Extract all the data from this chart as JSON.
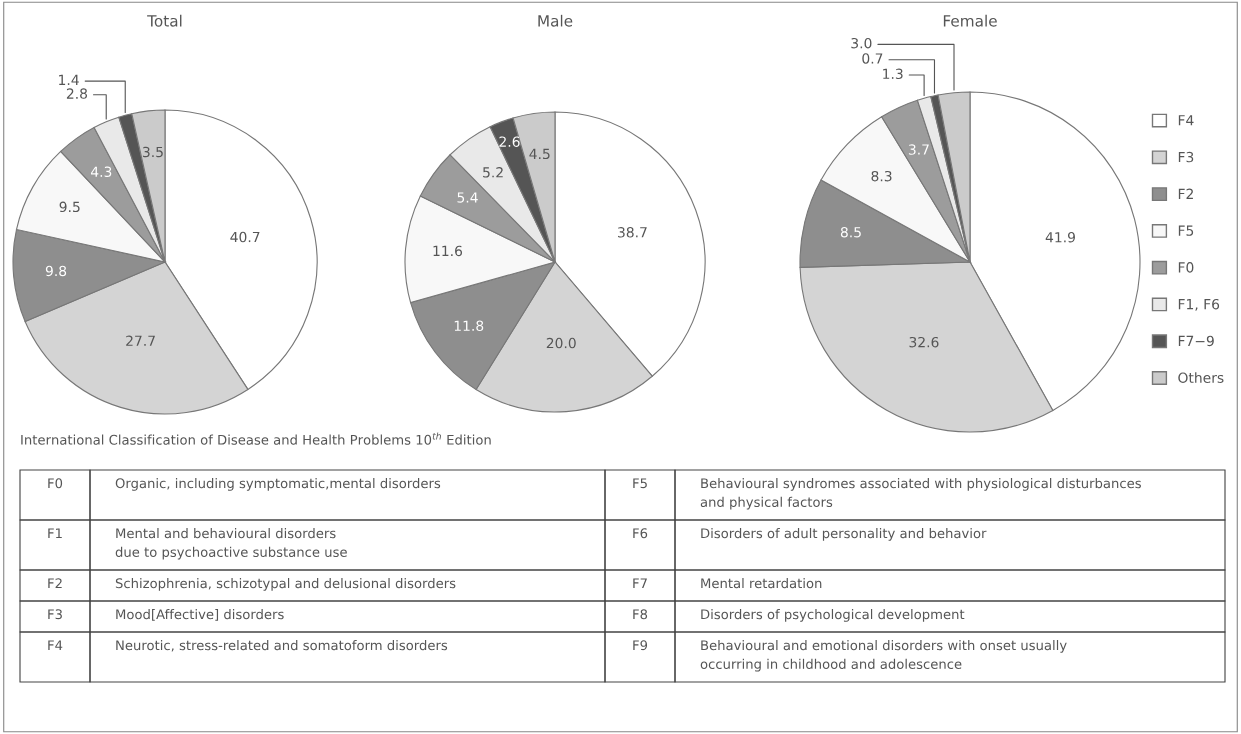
{
  "chart_data": [
    {
      "type": "pie",
      "title": "Total",
      "categories": [
        "F4",
        "F3",
        "F2",
        "F5",
        "F0",
        "F1, F6",
        "F7−9",
        "Others"
      ],
      "values": [
        40.7,
        27.7,
        9.8,
        9.5,
        4.3,
        2.8,
        1.4,
        3.5
      ],
      "colors": [
        "#ffffff",
        "#d4d4d4",
        "#8e8e8e",
        "#f8f8f8",
        "#9c9c9c",
        "#e9e9e9",
        "#555555",
        "#cbcbcb"
      ],
      "value_labels": [
        "40.7",
        "27.7",
        "9.8",
        "9.5",
        "4.3",
        "2.8",
        "1.4",
        "3.5"
      ],
      "legend": "right"
    },
    {
      "type": "pie",
      "title": "Male",
      "categories": [
        null,
        null,
        null,
        null,
        null,
        null,
        null,
        null
      ],
      "values": [
        38.7,
        20.0,
        11.8,
        11.6,
        5.4,
        5.2,
        2.6,
        4.5
      ],
      "colors": [
        "#ffffff",
        "#d4d4d4",
        "#8e8e8e",
        "#f8f8f8",
        "#9c9c9c",
        "#e9e9e9",
        "#555555",
        "#cbcbcb"
      ],
      "value_labels": [
        "38.7",
        "20.0",
        "11.8",
        "11.6",
        "5.4",
        "5.2",
        "2.6",
        "4.5"
      ]
    },
    {
      "type": "pie",
      "title": "Female",
      "categories": [
        null,
        null,
        null,
        null,
        null,
        null,
        null,
        null
      ],
      "values": [
        41.9,
        32.6,
        8.5,
        8.3,
        3.7,
        1.3,
        0.7,
        3.0
      ],
      "colors": [
        "#ffffff",
        "#d4d4d4",
        "#8e8e8e",
        "#f8f8f8",
        "#9c9c9c",
        "#e9e9e9",
        "#555555",
        "#cbcbcb"
      ],
      "value_labels": [
        "41.9",
        "32.6",
        "8.5",
        "8.3",
        "3.7",
        "1.3",
        "0.7",
        "3.0"
      ]
    },
    {
      "type": "other",
      "annotations": [
        "International Classification of Disease and Health Problems 10$^{th}$ Edition",
        "F0",
        "Organic, including symptomatic,mental disorders",
        "F5",
        "Behavioural syndromes associated with physiological disturbances\nand physical factors",
        "F1",
        "Mental and behavioural disorders\ndue to psychoactive substance use",
        "F6",
        "Disorders of adult personality and behavior",
        "F2",
        "Schizophrenia, schizotypal and delusional disorders",
        "F7",
        "Mental retardation",
        "F3",
        "Mood[Affective] disorders",
        "F8",
        "Disorders of psychological development",
        "F4",
        "Neurotic, stress-related and somatoform disorders",
        "F9",
        "Behavioural and emotional disorders with onset usually\noccurring in childhood and adolescence"
      ]
    }
  ]
}
